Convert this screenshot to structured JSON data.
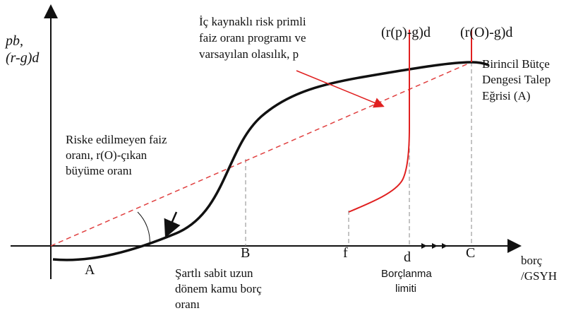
{
  "axes": {
    "y_label": [
      "pb,",
      "(r-g)d"
    ],
    "x_label": [
      "borç",
      "/GSYH"
    ]
  },
  "points": {
    "A": "A",
    "B": "B",
    "f": "f",
    "d": "d",
    "C": "C"
  },
  "annotations": {
    "risk_free": [
      "Riske edilmeyen faiz",
      "oranı, r(O)-çıkan",
      "büyüme oranı"
    ],
    "risk_premium": [
      "İç kaynaklı risk primli",
      "faiz oranı programı ve",
      "varsayılan olasılık, p"
    ],
    "rp_label": "(r(p)-g)d",
    "ro_label": "(r(O)-g)d",
    "demand_curve": [
      "Birincil Bütçe",
      "Dengesi Talep",
      "Eğrisi (A)"
    ],
    "conditional": [
      "Şartlı sabit uzun",
      "dönem kamu borç",
      "oranı"
    ],
    "limit": [
      "Borçlanma",
      "limiti"
    ]
  }
}
